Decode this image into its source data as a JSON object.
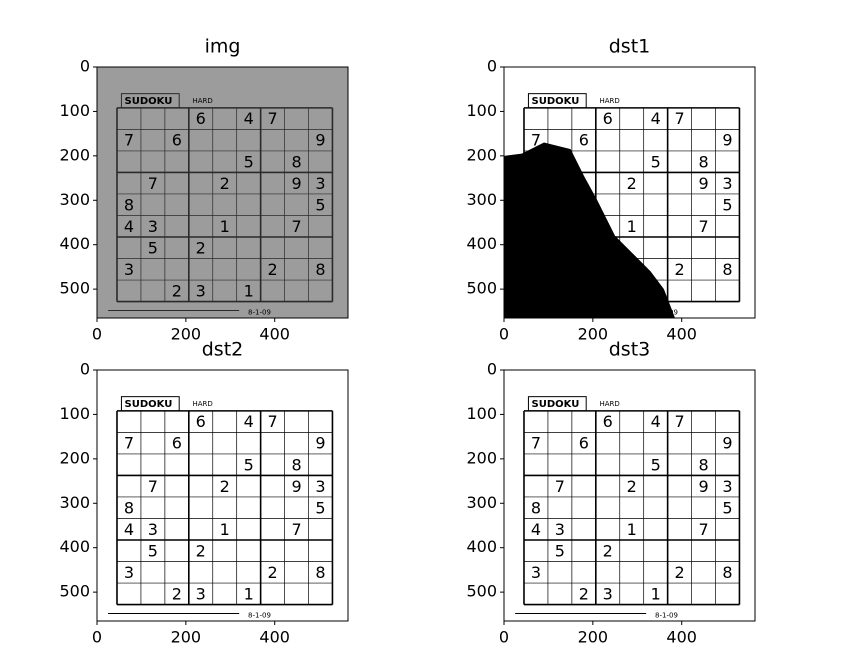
{
  "chart_data": [
    {
      "type": "image",
      "title": "img",
      "xlim": [
        0,
        565
      ],
      "ylim": [
        565,
        0
      ],
      "xticks": [
        0,
        200,
        400
      ],
      "yticks": [
        0,
        100,
        200,
        300,
        400,
        500
      ],
      "background": "#9c9c9c",
      "ink": "#2a2a2a",
      "shadow": false
    },
    {
      "type": "image",
      "title": "dst1",
      "xlim": [
        0,
        565
      ],
      "ylim": [
        565,
        0
      ],
      "xticks": [
        0,
        200,
        400
      ],
      "yticks": [
        0,
        100,
        200,
        300,
        400,
        500
      ],
      "background": "#ffffff",
      "ink": "#000000",
      "shadow": true
    },
    {
      "type": "image",
      "title": "dst2",
      "xlim": [
        0,
        565
      ],
      "ylim": [
        565,
        0
      ],
      "xticks": [
        0,
        200,
        400
      ],
      "yticks": [
        0,
        100,
        200,
        300,
        400,
        500
      ],
      "background": "#ffffff",
      "ink": "#000000",
      "shadow": false
    },
    {
      "type": "image",
      "title": "dst3",
      "xlim": [
        0,
        565
      ],
      "ylim": [
        565,
        0
      ],
      "xticks": [
        0,
        200,
        400
      ],
      "yticks": [
        0,
        100,
        200,
        300,
        400,
        500
      ],
      "background": "#ffffff",
      "ink": "#000000",
      "shadow": false
    }
  ],
  "sudoku": {
    "label": "SUDOKU",
    "level": "HARD",
    "date": "8-1-09",
    "rows": [
      [
        null,
        null,
        null,
        "6",
        null,
        "4",
        "7",
        null,
        null
      ],
      [
        "7",
        null,
        "6",
        null,
        null,
        null,
        null,
        null,
        "9"
      ],
      [
        null,
        null,
        null,
        null,
        null,
        "5",
        null,
        "8",
        null
      ],
      [
        null,
        "7",
        null,
        null,
        "2",
        null,
        null,
        "9",
        "3"
      ],
      [
        "8",
        null,
        null,
        null,
        null,
        null,
        null,
        null,
        "5"
      ],
      [
        "4",
        "3",
        null,
        null,
        "1",
        null,
        null,
        "7",
        null
      ],
      [
        null,
        "5",
        null,
        "2",
        null,
        null,
        null,
        null,
        null
      ],
      [
        "3",
        null,
        null,
        null,
        null,
        null,
        "2",
        null,
        "8"
      ],
      [
        null,
        null,
        "2",
        "3",
        null,
        "1",
        null,
        null,
        null
      ]
    ]
  }
}
